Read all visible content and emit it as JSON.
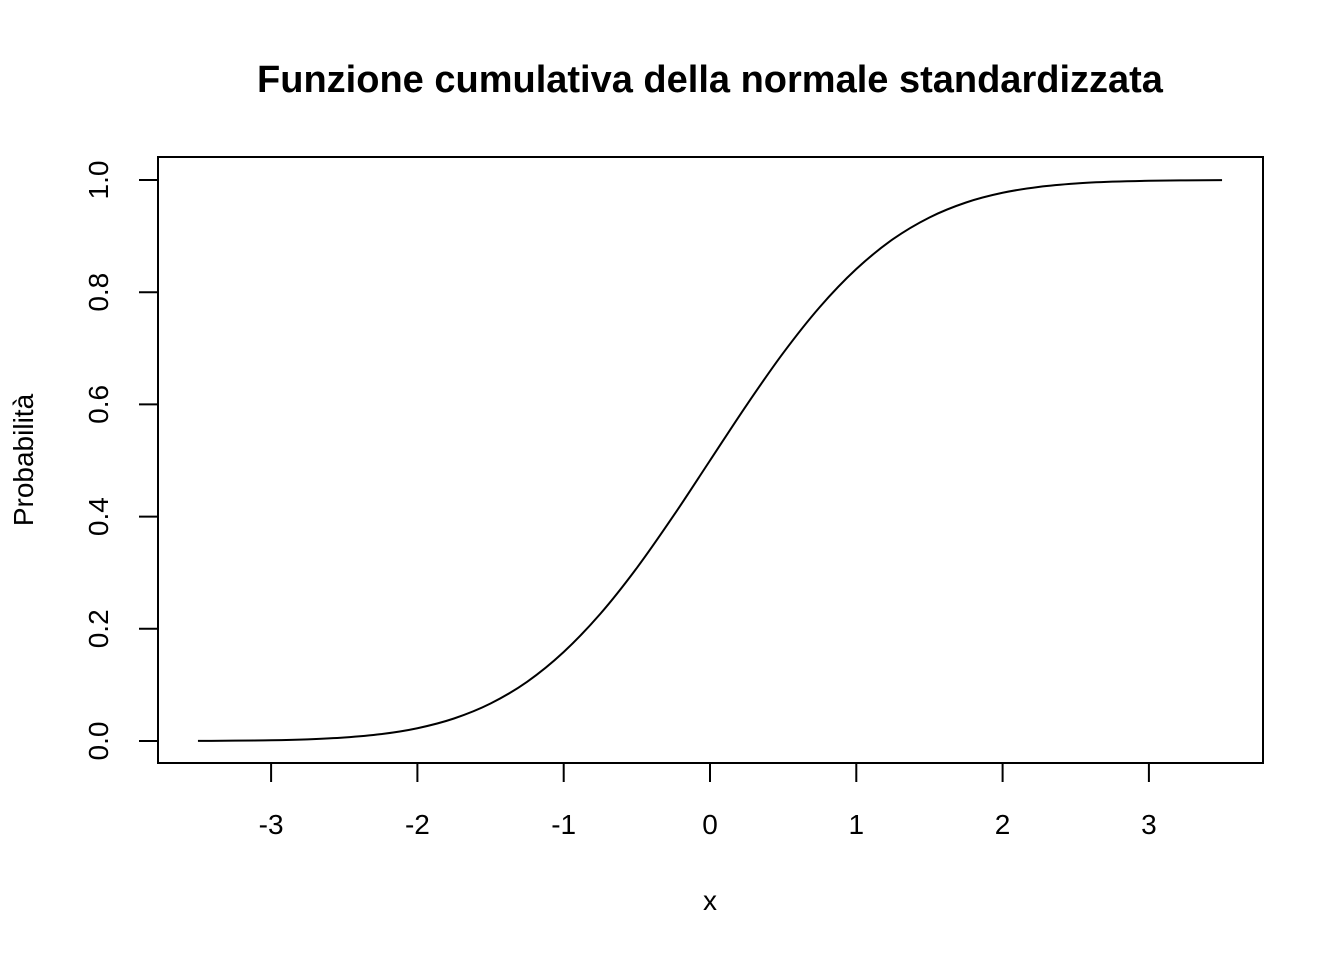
{
  "chart_data": {
    "type": "line",
    "title": "Funzione cumulativa della normale standardizzata",
    "xlabel": "x",
    "ylabel": "Probabilità",
    "xlim": [
      -3.5,
      3.5
    ],
    "ylim": [
      0,
      1
    ],
    "x_ticks": [
      -3,
      -2,
      -1,
      0,
      1,
      2,
      3
    ],
    "x_tick_labels": [
      "-3",
      "-2",
      "-1",
      "0",
      "1",
      "2",
      "3"
    ],
    "y_ticks": [
      0,
      0.2,
      0.4,
      0.6,
      0.8,
      1
    ],
    "y_tick_labels": [
      "0.0",
      "0.2",
      "0.4",
      "0.6",
      "0.8",
      "1.0"
    ],
    "grid": false,
    "line_color": "#000000",
    "series": [
      {
        "x": [
          -3.5,
          -3.25,
          -3.0,
          -2.75,
          -2.5,
          -2.25,
          -2.0,
          -1.75,
          -1.5,
          -1.25,
          -1.0,
          -0.75,
          -0.5,
          -0.25,
          0.0,
          0.25,
          0.5,
          0.75,
          1.0,
          1.25,
          1.5,
          1.75,
          2.0,
          2.25,
          2.5,
          2.75,
          3.0,
          3.25,
          3.5
        ],
        "y": [
          0.0002,
          0.0006,
          0.0013,
          0.003,
          0.0062,
          0.0122,
          0.0228,
          0.0401,
          0.0668,
          0.1056,
          0.1587,
          0.2266,
          0.3085,
          0.4013,
          0.5,
          0.5987,
          0.6915,
          0.7734,
          0.8413,
          0.8944,
          0.9332,
          0.9599,
          0.9772,
          0.9878,
          0.9938,
          0.997,
          0.9987,
          0.9994,
          0.9998
        ]
      }
    ]
  }
}
